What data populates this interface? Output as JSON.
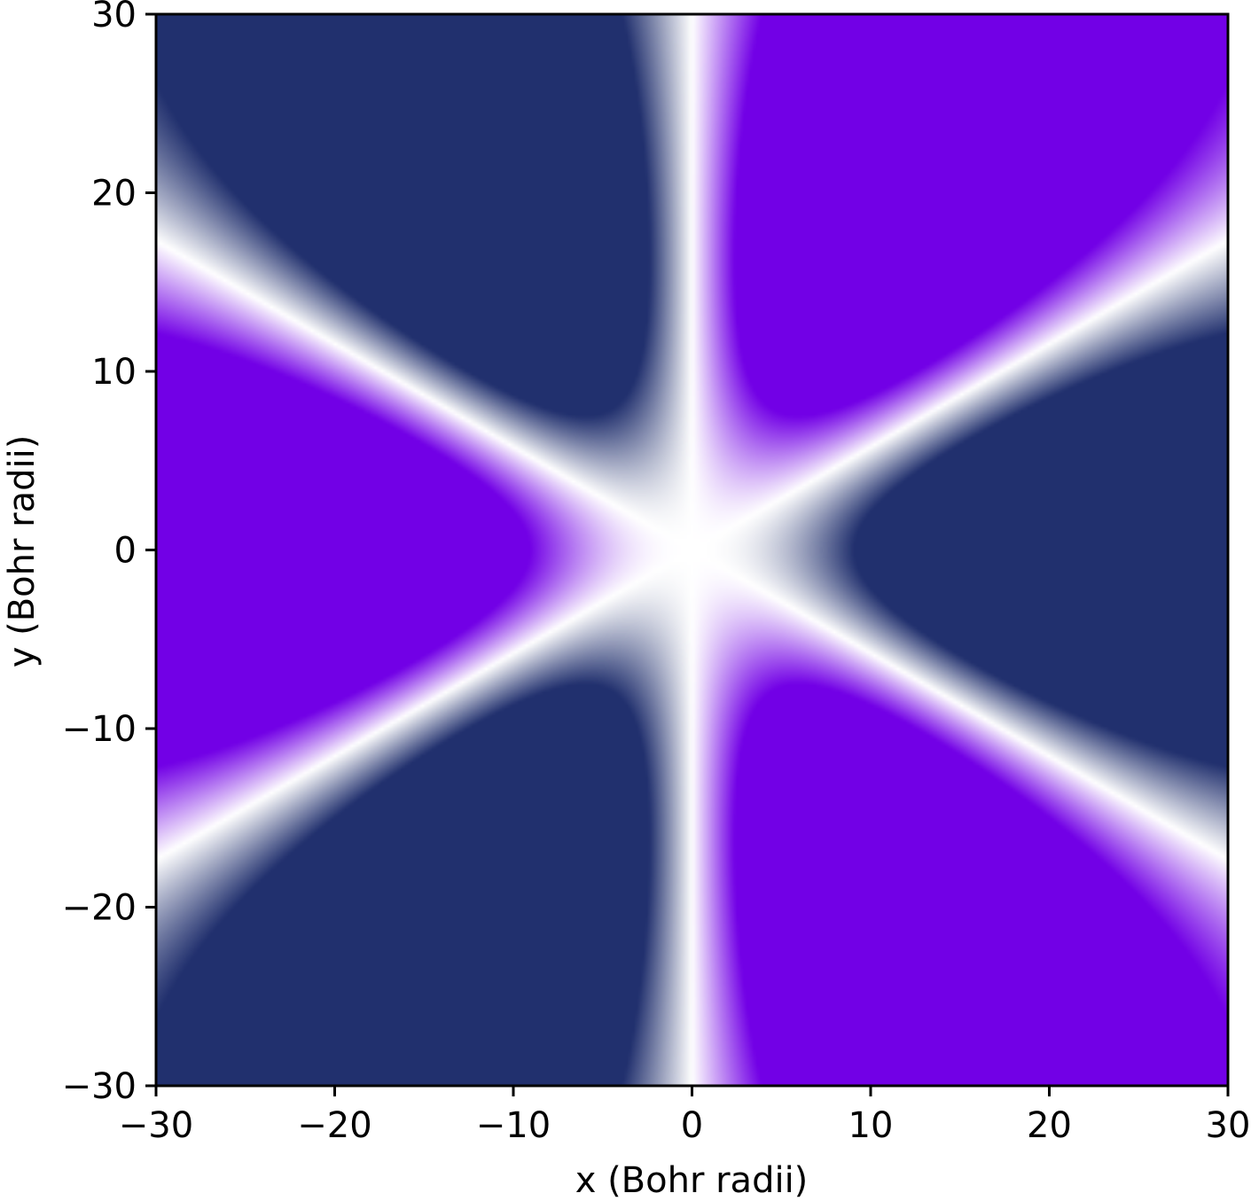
{
  "chart_data": {
    "type": "heatmap",
    "title": "",
    "xlabel": "x (Bohr radii)",
    "ylabel": "y (Bohr radii)",
    "xlim": [
      -30,
      30
    ],
    "ylim": [
      -30,
      30
    ],
    "xticks": [
      -30,
      -20,
      -10,
      0,
      10,
      20,
      30
    ],
    "yticks": [
      -30,
      -20,
      -10,
      0,
      10,
      20,
      30
    ],
    "xtick_labels": [
      "−30",
      "−20",
      "−10",
      "0",
      "10",
      "20",
      "30"
    ],
    "ytick_labels": [
      "−30",
      "−20",
      "−10",
      "0",
      "10",
      "20",
      "30"
    ],
    "grid": false,
    "colormap": {
      "negative_color": "#21306e",
      "zero_color": "#ffffff",
      "positive_color": "#7200e6"
    },
    "lobes": [
      {
        "sign": "negative",
        "center": [
          -7.5,
          12.5
        ]
      },
      {
        "sign": "positive",
        "center": [
          7.5,
          12.5
        ]
      },
      {
        "sign": "positive",
        "center": [
          -12.5,
          0
        ]
      },
      {
        "sign": "negative",
        "center": [
          12.5,
          0
        ]
      },
      {
        "sign": "negative",
        "center": [
          -7.5,
          -12.5
        ]
      },
      {
        "sign": "positive",
        "center": [
          7.5,
          -12.5
        ]
      }
    ]
  }
}
